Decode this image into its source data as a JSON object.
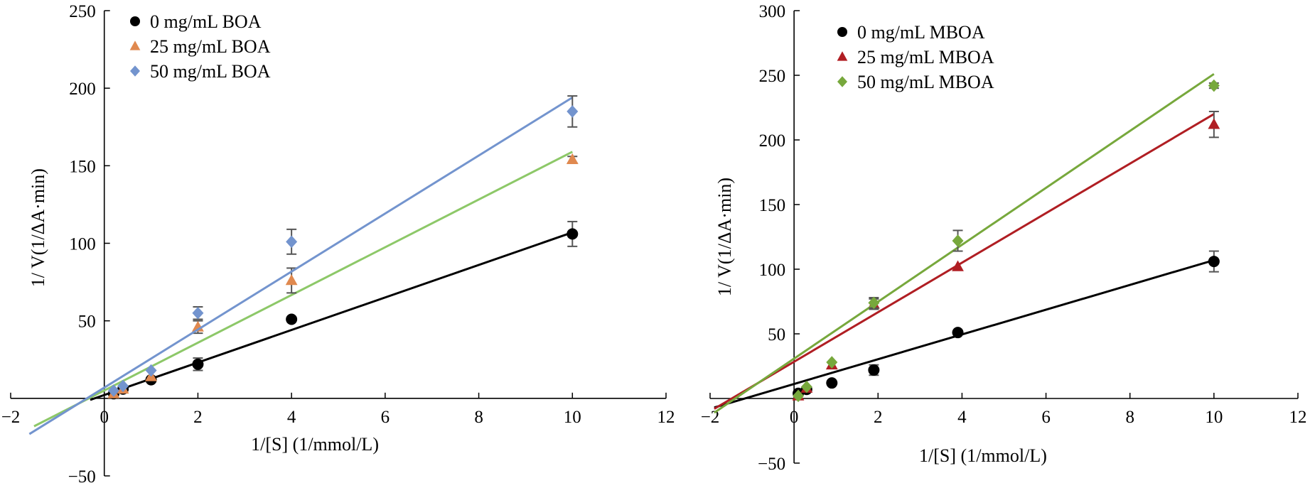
{
  "chart_data": [
    {
      "type": "scatter",
      "xlabel": "1/[S] (1/mmol/L)",
      "ylabel": "1/ V(1/ΔA·min)",
      "xlim": [
        -2,
        12
      ],
      "ylim": [
        -50,
        250
      ],
      "xticks": [
        "−2",
        "0",
        "2",
        "4",
        "6",
        "8",
        "10",
        "12"
      ],
      "yticks": [
        "−50",
        "50",
        "100",
        "150",
        "200",
        "250"
      ],
      "legend_position": "top-left",
      "series": [
        {
          "name": "0 mg/mL BOA",
          "color": "#000000",
          "line_color": "#000000",
          "marker": "circle",
          "x": [
            0.2,
            0.4,
            1,
            2,
            4,
            10
          ],
          "y": [
            3,
            6,
            12,
            22,
            51,
            106
          ],
          "err": [
            0,
            0,
            0,
            4,
            0,
            8
          ],
          "fit": [
            [
              -0.3,
              -1
            ],
            [
              10,
              107
            ]
          ]
        },
        {
          "name": "25 mg/mL BOA",
          "color": "#E0894F",
          "line_color": "#8DC868",
          "marker": "triangle",
          "x": [
            0.2,
            0.4,
            1,
            2,
            4,
            10
          ],
          "y": [
            3,
            6,
            14,
            46,
            76,
            154
          ],
          "err": [
            0,
            0,
            0,
            4,
            8,
            2
          ],
          "fit": [
            [
              -1.5,
              -18
            ],
            [
              10,
              159
            ]
          ]
        },
        {
          "name": "50 mg/mL BOA",
          "color": "#7394CE",
          "line_color": "#7394CE",
          "marker": "diamond",
          "x": [
            0.2,
            0.4,
            1,
            2,
            4,
            10
          ],
          "y": [
            5,
            8,
            18,
            55,
            101,
            185
          ],
          "err": [
            0,
            0,
            0,
            4,
            8,
            10
          ],
          "fit": [
            [
              -1.6,
              -23
            ],
            [
              10,
              194
            ]
          ]
        }
      ]
    },
    {
      "type": "scatter",
      "xlabel": "1/[S] (1/mmol/L)",
      "ylabel": "1/ V(1/ΔA·min)",
      "xlim": [
        -2,
        12
      ],
      "ylim": [
        -50,
        300
      ],
      "xticks": [
        "−2",
        "0",
        "2",
        "4",
        "6",
        "8",
        "10",
        "12"
      ],
      "yticks": [
        "−50",
        "50",
        "100",
        "150",
        "200",
        "250",
        "300"
      ],
      "legend_position": "top-left",
      "series": [
        {
          "name": "0 mg/mL MBOA",
          "color": "#000000",
          "line_color": "#000000",
          "marker": "circle",
          "x": [
            0.1,
            0.3,
            0.9,
            1.9,
            3.9,
            10
          ],
          "y": [
            4,
            7,
            12,
            22,
            51,
            106
          ],
          "err": [
            0,
            0,
            0,
            4,
            0,
            8
          ],
          "fit": [
            [
              -1.9,
              -7
            ],
            [
              10,
              107
            ]
          ]
        },
        {
          "name": "25 mg/mL MBOA",
          "color": "#B01E23",
          "line_color": "#B01E23",
          "marker": "triangle",
          "x": [
            0.1,
            0.3,
            0.9,
            1.9,
            3.9,
            10
          ],
          "y": [
            2,
            8,
            26,
            73,
            102,
            212
          ],
          "err": [
            0,
            0,
            0,
            4,
            0,
            10
          ],
          "fit": [
            [
              -1.9,
              -8
            ],
            [
              10,
              220
            ]
          ]
        },
        {
          "name": "50 mg/mL MBOA",
          "color": "#77A83C",
          "line_color": "#77A83C",
          "marker": "diamond",
          "x": [
            0.1,
            0.3,
            0.9,
            1.9,
            3.9,
            10
          ],
          "y": [
            2,
            9,
            28,
            74,
            122,
            242
          ],
          "err": [
            0,
            0,
            0,
            4,
            8,
            2
          ],
          "fit": [
            [
              -1.9,
              -11
            ],
            [
              10,
              251
            ]
          ]
        }
      ]
    }
  ]
}
